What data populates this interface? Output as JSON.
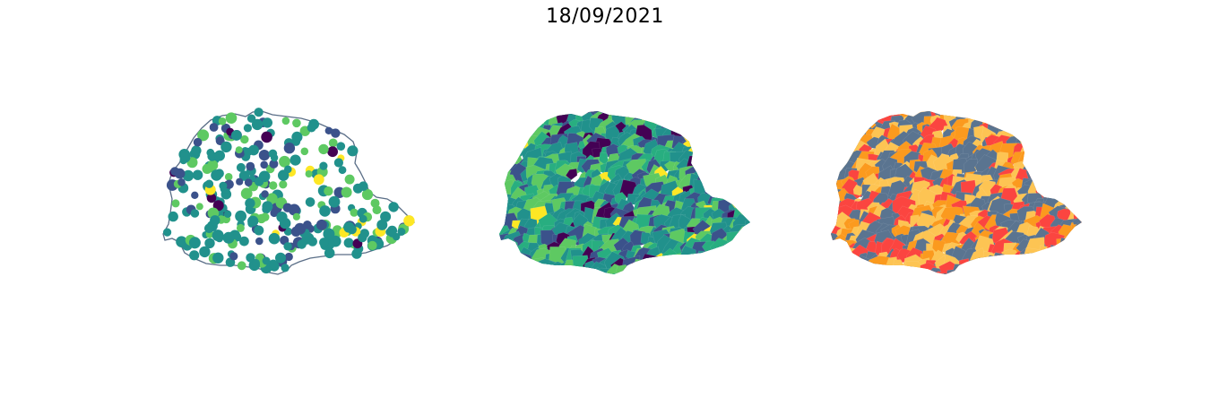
{
  "figure": {
    "title": "18/09/2021"
  },
  "panels": [
    {
      "id": "points",
      "kind": "point map",
      "outline_color": "#5a6e87",
      "colors": [
        "#440154",
        "#3b528b",
        "#21918c",
        "#5ec962",
        "#fde725"
      ]
    },
    {
      "id": "choropleth-viridis",
      "kind": "choropleth",
      "colors": [
        "#440154",
        "#3b528b",
        "#21918c",
        "#28ae80",
        "#5ec962",
        "#fde725"
      ]
    },
    {
      "id": "choropleth-categories",
      "kind": "choropleth",
      "colors": [
        "#5a7490",
        "#fdc453",
        "#fb9a1e",
        "#fb4540"
      ]
    }
  ]
}
